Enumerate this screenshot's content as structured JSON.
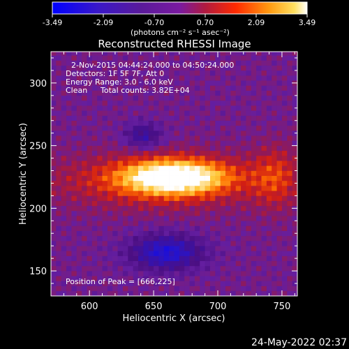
{
  "chart_data": {
    "type": "heatmap",
    "title": "Reconstructed RHESSI Image",
    "xlabel": "Heliocentric X (arcsec)",
    "ylabel": "Heliocentric Y (arcsec)",
    "xlim": [
      570,
      762
    ],
    "ylim": [
      130,
      325
    ],
    "xticks": [
      600,
      650,
      700,
      750
    ],
    "yticks": [
      150,
      200,
      250,
      300
    ],
    "colorbar": {
      "range": [
        -3.49,
        3.49
      ],
      "ticks": [
        "-3.49",
        "-2.09",
        "-0.70",
        "0.70",
        "2.09",
        "3.49"
      ],
      "unit_label": "(photons cm⁻² s⁻¹ asec⁻²)"
    },
    "annotations": {
      "time_range": "2-Nov-2015 04:44:24.000 to 04:50:24.000",
      "detectors": "Detectors: 1F 5F 7F, Att 0",
      "energy": "Energy Range: 3.0 - 6.0 keV",
      "algorithm": "Clean",
      "counts": "Total counts: 3.82E+04",
      "peak": "Position of Peak = [666,225]"
    },
    "peak": {
      "x": 666,
      "y": 225
    },
    "colors": [
      "#0000ff",
      "#4b0b7a",
      "#6a1fa0",
      "#c0202a",
      "#ff6a00",
      "#ffd24a",
      "#ffffff"
    ],
    "timestamp": "24-May-2022 02:37"
  }
}
